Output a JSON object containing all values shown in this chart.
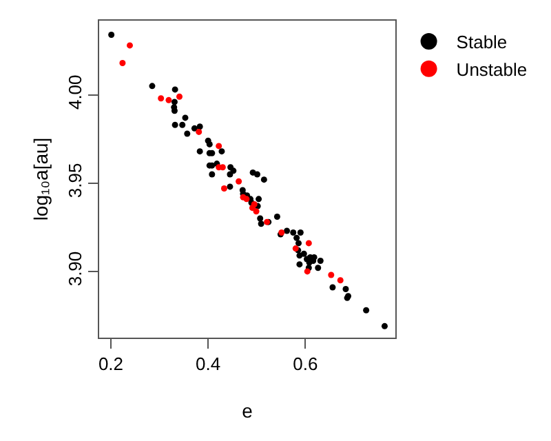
{
  "chart_data": {
    "type": "scatter",
    "xlabel": "e",
    "ylabel": "log₁₀a[au]",
    "xlim": [
      0.176,
      0.785
    ],
    "ylim": [
      3.8625,
      4.042
    ],
    "xticks": [
      0.2,
      0.4,
      0.6
    ],
    "yticks": [
      {
        "value": 3.9,
        "label": "3.90"
      },
      {
        "value": 3.95,
        "label": "3.95"
      },
      {
        "value": 4.0,
        "label": "4.00"
      }
    ],
    "grid": false,
    "legend": "top right",
    "marker": "circle",
    "series": [
      {
        "name": "Stable",
        "color": "#000000",
        "x": [
          0.201,
          0.285,
          0.332,
          0.331,
          0.33,
          0.331,
          0.353,
          0.332,
          0.347,
          0.357,
          0.372,
          0.383,
          0.4,
          0.403,
          0.428,
          0.383,
          0.403,
          0.408,
          0.403,
          0.408,
          0.418,
          0.446,
          0.452,
          0.408,
          0.445,
          0.492,
          0.501,
          0.515,
          0.445,
          0.471,
          0.472,
          0.48,
          0.487,
          0.504,
          0.489,
          0.502,
          0.507,
          0.509,
          0.524,
          0.542,
          0.549,
          0.562,
          0.575,
          0.59,
          0.582,
          0.586,
          0.585,
          0.588,
          0.597,
          0.603,
          0.61,
          0.616,
          0.618,
          0.608,
          0.631,
          0.588,
          0.607,
          0.626,
          0.656,
          0.683,
          0.688,
          0.686,
          0.725,
          0.763
        ],
        "values": [
          4.034,
          4.005,
          4.003,
          3.996,
          3.993,
          3.991,
          3.987,
          3.983,
          3.983,
          3.978,
          3.981,
          3.982,
          3.974,
          3.972,
          3.968,
          3.968,
          3.967,
          3.967,
          3.96,
          3.96,
          3.961,
          3.959,
          3.957,
          3.955,
          3.955,
          3.956,
          3.955,
          3.952,
          3.948,
          3.946,
          3.944,
          3.943,
          3.941,
          3.941,
          3.939,
          3.937,
          3.93,
          3.927,
          3.928,
          3.931,
          3.921,
          3.923,
          3.922,
          3.922,
          3.919,
          3.916,
          3.912,
          3.909,
          3.91,
          3.907,
          3.908,
          3.906,
          3.908,
          3.905,
          3.906,
          3.904,
          3.902,
          3.902,
          3.891,
          3.89,
          3.886,
          3.885,
          3.878,
          3.869
        ]
      },
      {
        "name": "Unstable",
        "color": "#ff0000",
        "x": [
          0.239,
          0.224,
          0.303,
          0.319,
          0.341,
          0.381,
          0.422,
          0.422,
          0.43,
          0.463,
          0.433,
          0.472,
          0.479,
          0.495,
          0.491,
          0.499,
          0.521,
          0.551,
          0.607,
          0.58,
          0.604,
          0.653,
          0.672
        ],
        "values": [
          4.028,
          4.018,
          3.998,
          3.997,
          3.999,
          3.979,
          3.971,
          3.959,
          3.959,
          3.951,
          3.947,
          3.942,
          3.941,
          3.938,
          3.936,
          3.934,
          3.928,
          3.922,
          3.916,
          3.913,
          3.9,
          3.898,
          3.895
        ]
      }
    ]
  }
}
